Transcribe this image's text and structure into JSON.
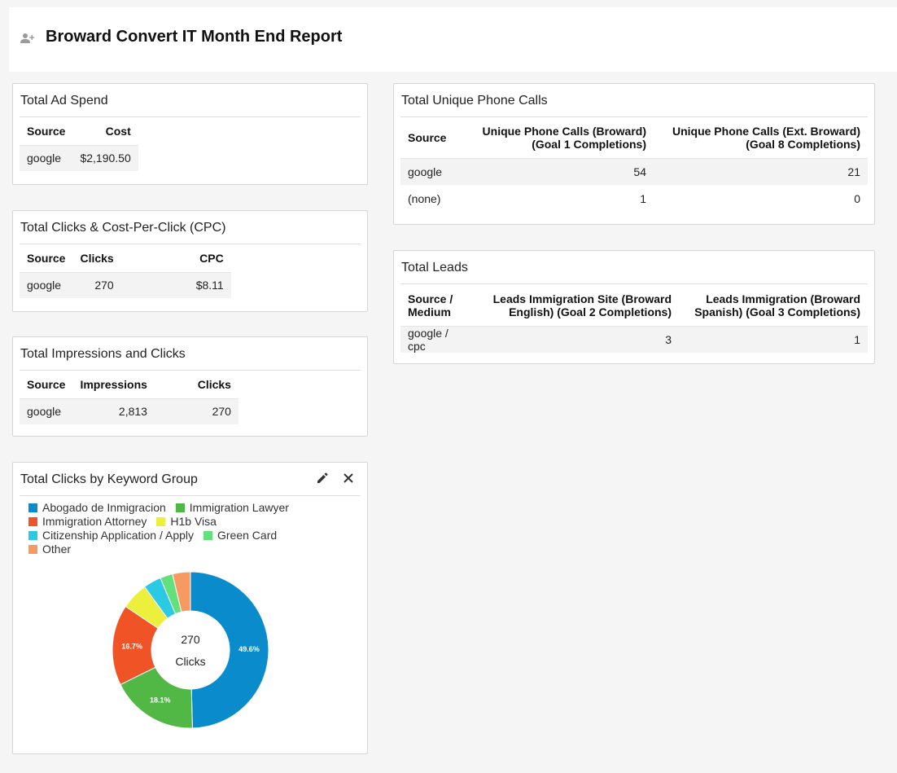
{
  "header": {
    "title": "Broward Convert IT Month End Report",
    "share_icon": "person-add-icon"
  },
  "ad_spend": {
    "title": "Total Ad Spend",
    "headers": [
      "Source",
      "Cost"
    ],
    "rows": [
      [
        "google",
        "$2,190.50"
      ]
    ]
  },
  "clicks_cpc": {
    "title": "Total Clicks & Cost-Per-Click (CPC)",
    "headers": [
      "Source",
      "Clicks",
      "CPC"
    ],
    "rows": [
      [
        "google",
        "270",
        "$8.11"
      ]
    ]
  },
  "impressions": {
    "title": "Total Impressions and Clicks",
    "headers": [
      "Source",
      "Impressions",
      "Clicks"
    ],
    "rows": [
      [
        "google",
        "2,813",
        "270"
      ]
    ]
  },
  "phone_calls": {
    "title": "Total Unique Phone Calls",
    "headers": [
      "Source",
      "Unique Phone Calls (Broward) (Goal 1 Completions)",
      "Unique Phone Calls (Ext. Broward) (Goal 8 Completions)"
    ],
    "rows": [
      [
        "google",
        "54",
        "21"
      ],
      [
        "(none)",
        "1",
        "0"
      ]
    ]
  },
  "leads": {
    "title": "Total Leads",
    "headers": [
      "Source / Medium",
      "Leads Immigration Site (Broward English) (Goal 2 Completions)",
      "Leads Immigration (Broward Spanish) (Goal 3 Completions)"
    ],
    "rows": [
      [
        "google / cpc",
        "3",
        "1"
      ]
    ]
  },
  "keyword_chart": {
    "title": "Total Clicks by Keyword Group",
    "edit_icon": "pencil-icon",
    "close_icon": "close-icon",
    "center_value": "270",
    "center_label": "Clicks"
  },
  "chart_data": {
    "type": "pie",
    "title": "Total Clicks by Keyword Group",
    "categories": [
      "Abogado de Inmigracion",
      "Immigration Lawyer",
      "Immigration Attorney",
      "H1b Visa",
      "Citizenship Application / Apply",
      "Green Card",
      "Other"
    ],
    "values": [
      49.6,
      18.1,
      16.7,
      5.6,
      3.7,
      2.6,
      3.7
    ],
    "slice_labels": [
      "49.6%",
      "18.1%",
      "16.7%",
      "",
      "",
      "",
      ""
    ],
    "colors": [
      "#0a8bcc",
      "#51b846",
      "#f05426",
      "#ecf03c",
      "#2cc9e3",
      "#62e07c",
      "#f79a61"
    ],
    "total": 270,
    "legend_position": "top"
  }
}
